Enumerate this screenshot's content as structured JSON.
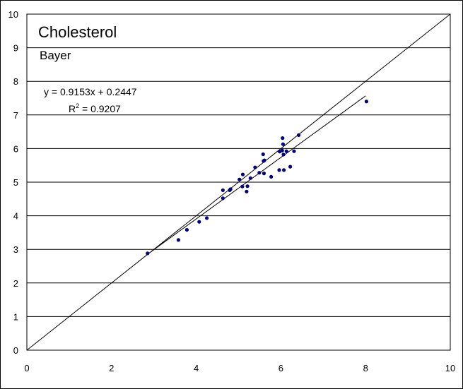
{
  "chart_data": {
    "type": "scatter",
    "title": "Cholesterol",
    "subtitle": "Bayer",
    "annotations": {
      "equation": "y = 0.9153x + 0.2447",
      "r2_prefix": "R",
      "r2_exp": "2",
      "r2_suffix": " = 0.9207"
    },
    "xlim": [
      0,
      10
    ],
    "ylim": [
      0,
      10
    ],
    "x_ticks": [
      "0",
      "2",
      "4",
      "6",
      "8",
      "10"
    ],
    "y_ticks": [
      "0",
      "1",
      "2",
      "3",
      "4",
      "5",
      "6",
      "7",
      "8",
      "9",
      "10"
    ],
    "grid": "horizontal",
    "colors": {
      "points": "#000080",
      "lines": "#000000",
      "grid": "#000000"
    },
    "trendline": {
      "slope": 0.9153,
      "intercept": 0.2447,
      "x_range": [
        2.85,
        8.0
      ]
    },
    "identity_line": {
      "from": [
        0,
        0
      ],
      "to": [
        10,
        10
      ]
    },
    "series": [
      {
        "x": [
          2.85,
          3.58,
          3.78,
          4.07,
          4.25,
          4.63,
          4.63,
          4.79,
          4.81,
          5.02,
          5.09,
          5.1,
          5.19,
          5.21,
          5.28,
          5.39,
          5.49,
          5.58,
          5.59,
          5.6,
          5.61,
          5.77,
          5.96,
          5.97,
          6.03,
          6.04,
          6.05,
          6.06,
          6.07,
          6.13,
          6.22,
          6.31,
          6.42,
          8.02
        ],
        "y": [
          2.88,
          3.28,
          3.58,
          3.82,
          3.93,
          4.76,
          4.52,
          4.76,
          4.79,
          5.08,
          4.87,
          5.23,
          4.72,
          4.88,
          5.12,
          5.44,
          5.28,
          5.83,
          5.63,
          5.26,
          5.65,
          5.16,
          5.36,
          5.91,
          5.94,
          6.31,
          6.13,
          5.82,
          5.36,
          5.92,
          5.46,
          5.92,
          6.4,
          7.4
        ]
      }
    ]
  }
}
